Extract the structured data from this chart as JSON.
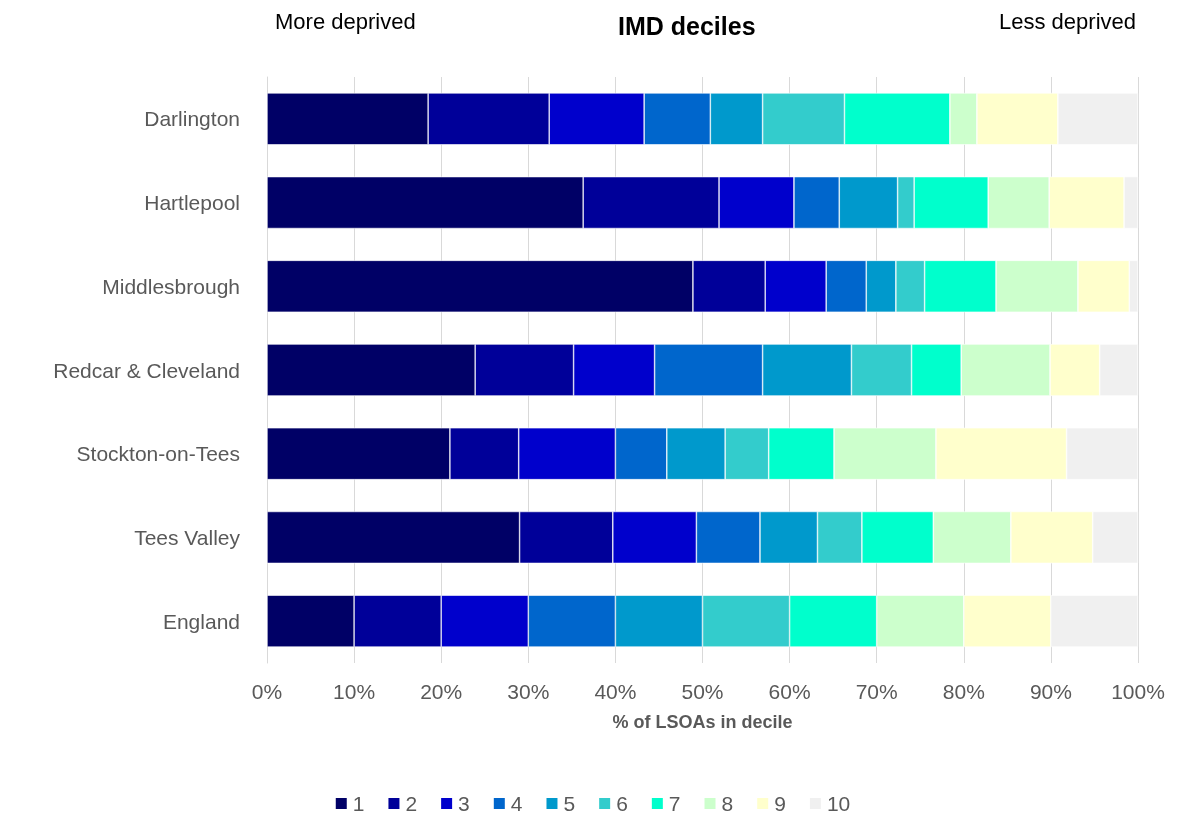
{
  "chart_data": {
    "type": "bar",
    "orientation": "horizontal",
    "stacked": true,
    "title": "IMD deciles",
    "xlabel": "% of LSOAs in decile",
    "annotations": [
      "More deprived",
      "Less deprived"
    ],
    "categories": [
      "Darlington",
      "Hartlepool",
      "Middlesbrough",
      "Redcar & Cleveland",
      "Stockton-on-Tees",
      "Tees Valley",
      "England"
    ],
    "series": [
      {
        "name": "1",
        "color": "#000066",
        "values": [
          18.5,
          36.3,
          48.9,
          23.9,
          21.0,
          29.0,
          10
        ]
      },
      {
        "name": "2",
        "color": "#000099",
        "values": [
          13.9,
          15.6,
          8.3,
          11.3,
          7.9,
          10.7,
          10
        ]
      },
      {
        "name": "3",
        "color": "#0000cc",
        "values": [
          10.9,
          8.6,
          7.0,
          9.3,
          11.1,
          9.6,
          10
        ]
      },
      {
        "name": "4",
        "color": "#0066cc",
        "values": [
          7.6,
          5.2,
          4.6,
          12.4,
          5.9,
          7.3,
          10
        ]
      },
      {
        "name": "5",
        "color": "#0099cc",
        "values": [
          6.0,
          6.7,
          3.4,
          10.2,
          6.7,
          6.6,
          10
        ]
      },
      {
        "name": "6",
        "color": "#33cccc",
        "values": [
          9.4,
          1.9,
          3.3,
          6.9,
          5.0,
          5.1,
          10
        ]
      },
      {
        "name": "7",
        "color": "#00ffcc",
        "values": [
          12.1,
          8.5,
          8.2,
          5.7,
          7.5,
          8.2,
          10
        ]
      },
      {
        "name": "8",
        "color": "#ccffcc",
        "values": [
          3.1,
          7.0,
          9.4,
          10.2,
          11.7,
          8.9,
          10
        ]
      },
      {
        "name": "9",
        "color": "#ffffcc",
        "values": [
          9.3,
          8.6,
          5.9,
          5.7,
          15.0,
          9.4,
          10
        ]
      },
      {
        "name": "10",
        "color": "#f0f0f0",
        "values": [
          9.2,
          1.6,
          1.0,
          4.4,
          8.2,
          5.2,
          10
        ]
      }
    ],
    "xlim": [
      0,
      100
    ],
    "xticks": [
      {
        "value": 0,
        "label": "0%"
      },
      {
        "value": 10,
        "label": "10%"
      },
      {
        "value": 20,
        "label": "20%"
      },
      {
        "value": 30,
        "label": "30%"
      },
      {
        "value": 40,
        "label": "40%"
      },
      {
        "value": 50,
        "label": "50%"
      },
      {
        "value": 60,
        "label": "60%"
      },
      {
        "value": 70,
        "label": "70%"
      },
      {
        "value": 80,
        "label": "80%"
      },
      {
        "value": 90,
        "label": "90%"
      },
      {
        "value": 100,
        "label": "100%"
      }
    ],
    "grid": "x",
    "legend": "bottom"
  }
}
